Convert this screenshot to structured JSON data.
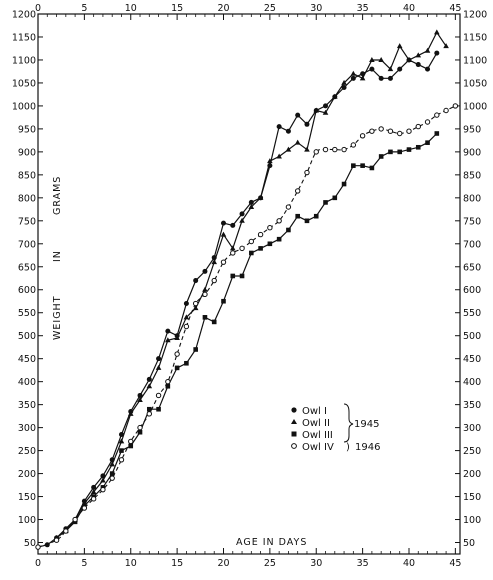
{
  "chart_data": {
    "type": "line",
    "title": "",
    "xlabel": "AGE IN DAYS",
    "ylabel_words": [
      "WEIGHT",
      "IN",
      "GRAMS"
    ],
    "xlim": [
      0,
      45.5
    ],
    "ylim": [
      25,
      1200
    ],
    "x_ticks": [
      0,
      5,
      10,
      15,
      20,
      25,
      30,
      35,
      40,
      45
    ],
    "x_tick_labels": [
      "0",
      "5",
      "10",
      "15",
      "20",
      "25",
      "30",
      "35",
      "40",
      "45"
    ],
    "y_ticks": [
      50,
      100,
      150,
      200,
      250,
      300,
      350,
      400,
      450,
      500,
      550,
      600,
      650,
      700,
      750,
      800,
      850,
      900,
      950,
      1000,
      1050,
      1100,
      1150,
      1200
    ],
    "y_tick_labels": [
      "50",
      "100",
      "150",
      "200",
      "250",
      "300",
      "350",
      "400",
      "450",
      "500",
      "550",
      "600",
      "650",
      "700",
      "750",
      "800",
      "850",
      "900",
      "950",
      "1000",
      "1050",
      "1100",
      "1150",
      "1200"
    ],
    "grid": false,
    "legend_position": "lower-right",
    "legend": {
      "entries": [
        "Owl I",
        "Owl II",
        "Owl III",
        "Owl IV"
      ],
      "group1_year": "1945",
      "group2_year": "1946"
    },
    "series": [
      {
        "name": "Owl I",
        "marker": "filled-circle",
        "line": "solid",
        "x": [
          0,
          1,
          2,
          3,
          4,
          5,
          6,
          7,
          8,
          9,
          10,
          11,
          12,
          13,
          14,
          15,
          16,
          17,
          18,
          19,
          20,
          21,
          22,
          23,
          24,
          25,
          26,
          27,
          28,
          29,
          30,
          31,
          32,
          33,
          34,
          35,
          36,
          37,
          38,
          39,
          40,
          41,
          42,
          43
        ],
        "y": [
          40,
          45,
          60,
          80,
          100,
          140,
          170,
          195,
          230,
          285,
          335,
          370,
          405,
          450,
          510,
          500,
          570,
          620,
          640,
          670,
          745,
          740,
          765,
          790,
          800,
          870,
          955,
          945,
          980,
          960,
          990,
          1000,
          1020,
          1040,
          1060,
          1070,
          1080,
          1060,
          1060,
          1080,
          1100,
          1090,
          1080,
          1115
        ]
      },
      {
        "name": "Owl II",
        "marker": "filled-triangle",
        "line": "solid",
        "x": [
          2,
          3,
          4,
          5,
          6,
          7,
          8,
          9,
          10,
          11,
          12,
          13,
          14,
          15,
          16,
          17,
          18,
          19,
          20,
          21,
          22,
          23,
          24,
          25,
          26,
          27,
          28,
          29,
          30,
          31,
          32,
          33,
          34,
          35,
          36,
          37,
          38,
          39,
          40,
          41,
          42,
          43,
          44
        ],
        "y": [
          60,
          75,
          100,
          135,
          160,
          185,
          220,
          270,
          330,
          360,
          390,
          430,
          490,
          495,
          540,
          560,
          600,
          660,
          720,
          690,
          750,
          780,
          800,
          880,
          890,
          905,
          920,
          905,
          990,
          985,
          1020,
          1050,
          1070,
          1060,
          1100,
          1100,
          1080,
          1130,
          1100,
          1110,
          1120,
          1160,
          1130
        ]
      },
      {
        "name": "Owl III",
        "marker": "filled-square",
        "line": "solid",
        "x": [
          3,
          4,
          5,
          6,
          7,
          8,
          9,
          10,
          11,
          12,
          13,
          14,
          15,
          16,
          17,
          18,
          19,
          20,
          21,
          22,
          23,
          24,
          25,
          26,
          27,
          28,
          29,
          30,
          31,
          32,
          33,
          34,
          35,
          36,
          37,
          38,
          39,
          40,
          41,
          42,
          43
        ],
        "y": [
          75,
          95,
          130,
          150,
          170,
          200,
          250,
          260,
          290,
          340,
          340,
          390,
          430,
          440,
          470,
          540,
          530,
          575,
          630,
          630,
          680,
          690,
          700,
          710,
          730,
          760,
          750,
          760,
          790,
          800,
          830,
          870,
          870,
          865,
          890,
          900,
          900,
          905,
          910,
          920,
          940
        ]
      },
      {
        "name": "Owl IV",
        "marker": "open-circle",
        "line": "dashed",
        "x": [
          0,
          2,
          3,
          4,
          5,
          6,
          7,
          8,
          9,
          10,
          11,
          12,
          13,
          14,
          15,
          16,
          17,
          18,
          19,
          20,
          21,
          22,
          23,
          24,
          25,
          26,
          27,
          28,
          29,
          30,
          31,
          32,
          33,
          34,
          35,
          36,
          37,
          38,
          39,
          40,
          41,
          42,
          43,
          44,
          45
        ],
        "y": [
          40,
          55,
          75,
          100,
          125,
          145,
          165,
          190,
          230,
          270,
          300,
          330,
          370,
          400,
          460,
          520,
          570,
          590,
          620,
          660,
          680,
          690,
          705,
          720,
          735,
          750,
          780,
          815,
          855,
          900,
          905,
          905,
          905,
          915,
          935,
          945,
          950,
          945,
          940,
          945,
          955,
          965,
          980,
          990,
          1000
        ]
      }
    ]
  }
}
